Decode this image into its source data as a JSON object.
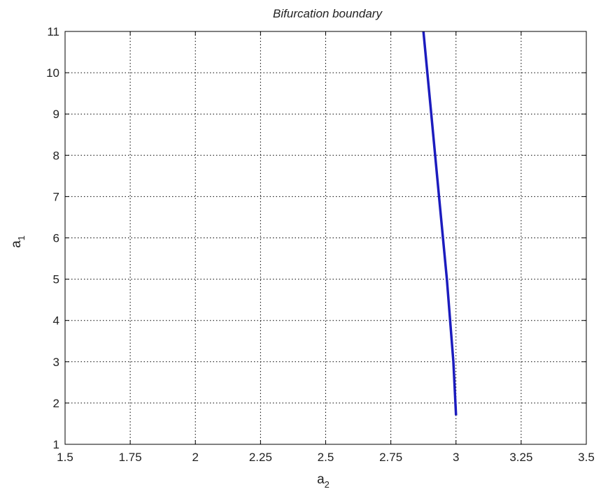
{
  "chart_data": {
    "type": "line",
    "title": "Bifurcation boundary",
    "xlabel": {
      "base": "a",
      "sub": "2"
    },
    "ylabel": {
      "base": "a",
      "sub": "1"
    },
    "xlim": [
      1.5,
      3.5
    ],
    "ylim": [
      1,
      11
    ],
    "xticks": [
      1.5,
      1.75,
      2,
      2.25,
      2.5,
      2.75,
      3,
      3.25,
      3.5
    ],
    "xtick_labels": [
      "1.5",
      "1.75",
      "2",
      "2.25",
      "2.5",
      "2.75",
      "3",
      "3.25",
      "3.5"
    ],
    "yticks": [
      1,
      2,
      3,
      4,
      5,
      6,
      7,
      8,
      9,
      10,
      11
    ],
    "ytick_labels": [
      "1",
      "2",
      "3",
      "4",
      "5",
      "6",
      "7",
      "8",
      "9",
      "10",
      "11"
    ],
    "grid": true,
    "series": [
      {
        "color": "#1c1cbe",
        "x": [
          2.875,
          2.905,
          2.935,
          2.965,
          2.99,
          3.0
        ],
        "y": [
          11,
          9,
          7,
          5,
          3,
          1.7
        ]
      }
    ]
  }
}
